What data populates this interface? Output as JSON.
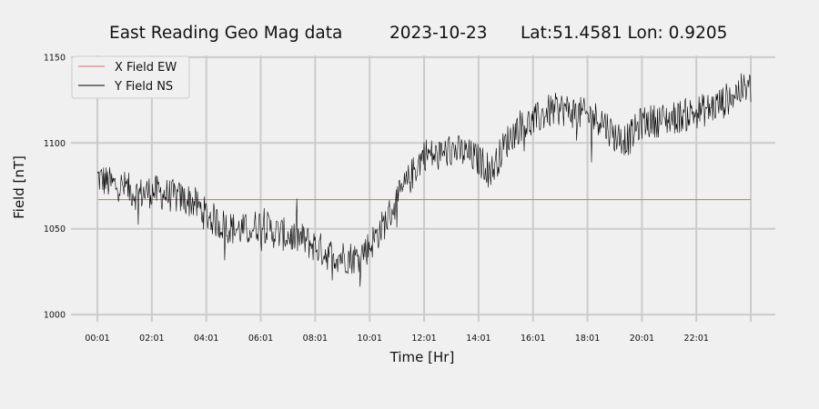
{
  "chart_data": {
    "type": "line",
    "title": {
      "station": "East Reading Geo Mag data",
      "date": "2023-10-23",
      "location": "Lat:51.4581  Lon: 0.9205"
    },
    "xlabel": "Time  [Hr]",
    "ylabel": "Field  [nT]",
    "x_ticks": [
      "00:01",
      "02:01",
      "04:01",
      "06:01",
      "08:01",
      "10:01",
      "12:01",
      "14:01",
      "16:01",
      "18:01",
      "20:01",
      "22:01"
    ],
    "y_ticks": [
      1000,
      1050,
      1100,
      1150
    ],
    "xlim": [
      -0.97,
      24.9
    ],
    "ylim": [
      999,
      1151
    ],
    "grid": true,
    "legend": "top-left",
    "series": [
      {
        "name": "X Field EW",
        "color": "#e06666",
        "x": [
          0.02,
          24.0
        ],
        "values": [
          1067,
          1067
        ]
      },
      {
        "name": "Y Field NS",
        "color": "#000000",
        "x": [
          0.0,
          0.5,
          1.0,
          1.5,
          2.0,
          2.5,
          3.0,
          3.5,
          4.0,
          4.5,
          5.0,
          5.5,
          6.0,
          6.5,
          7.0,
          7.5,
          8.0,
          8.5,
          9.0,
          9.5,
          10.0,
          10.5,
          11.0,
          11.5,
          12.0,
          12.5,
          13.0,
          13.5,
          14.0,
          14.5,
          15.0,
          15.5,
          16.0,
          16.5,
          17.0,
          17.5,
          18.0,
          18.5,
          19.0,
          19.5,
          20.0,
          20.5,
          21.0,
          21.5,
          22.0,
          22.5,
          23.0,
          23.5,
          24.0
        ],
        "values": [
          1080,
          1076,
          1074,
          1070,
          1072,
          1070,
          1068,
          1066,
          1058,
          1053,
          1050,
          1049,
          1053,
          1048,
          1046,
          1044,
          1040,
          1035,
          1034,
          1033,
          1040,
          1052,
          1066,
          1080,
          1094,
          1092,
          1096,
          1094,
          1090,
          1084,
          1100,
          1110,
          1112,
          1118,
          1120,
          1118,
          1116,
          1114,
          1104,
          1102,
          1112,
          1113,
          1114,
          1116,
          1118,
          1120,
          1124,
          1130,
          1132
        ]
      }
    ]
  }
}
